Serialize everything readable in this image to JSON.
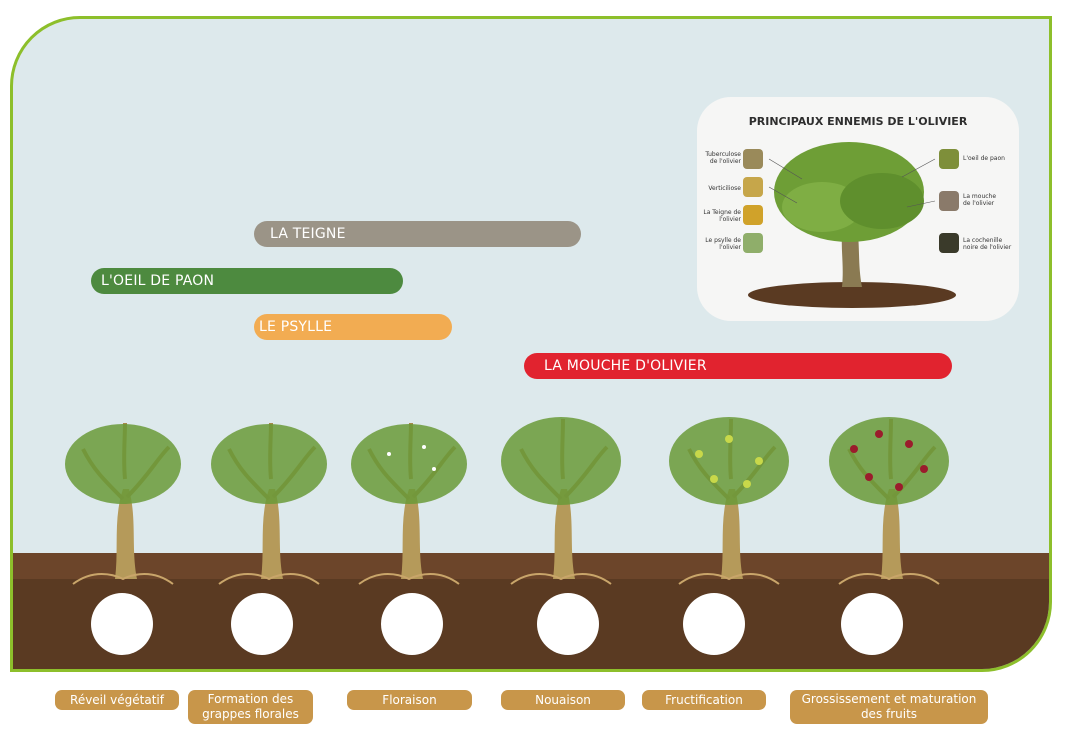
{
  "bars": {
    "teigne": "LA TEIGNE",
    "oeil": "L'OEIL DE PAON",
    "psylle": "LE PSYLLE",
    "mouche": "LA MOUCHE D'OLIVIER"
  },
  "inset": {
    "title": "PRINCIPAUX ENNEMIS DE L'OLIVIER",
    "left": [
      "Tuberculose de l'olivier",
      "Verticiliose",
      "La Teigne de l'olivier",
      "Le psylle de l'olivier"
    ],
    "right": [
      "L'oeil de paon",
      "La mouche de l'olivier",
      "La cochenille noire de l'olivier"
    ]
  },
  "stages": [
    "Réveil végétatif",
    "Formation des grappes florales",
    "Floraison",
    "Nouaison",
    "Fructification",
    "Grossissement et maturation des fruits"
  ],
  "colors": {
    "frame": "#8dbf2b",
    "sky": "#dde9ec",
    "soil": "#5a3a22",
    "teigne": "#9b9487",
    "oeil": "#4d8a3f",
    "psylle": "#f2ac52",
    "mouche": "#e1232f",
    "stage": "#c8964a"
  }
}
